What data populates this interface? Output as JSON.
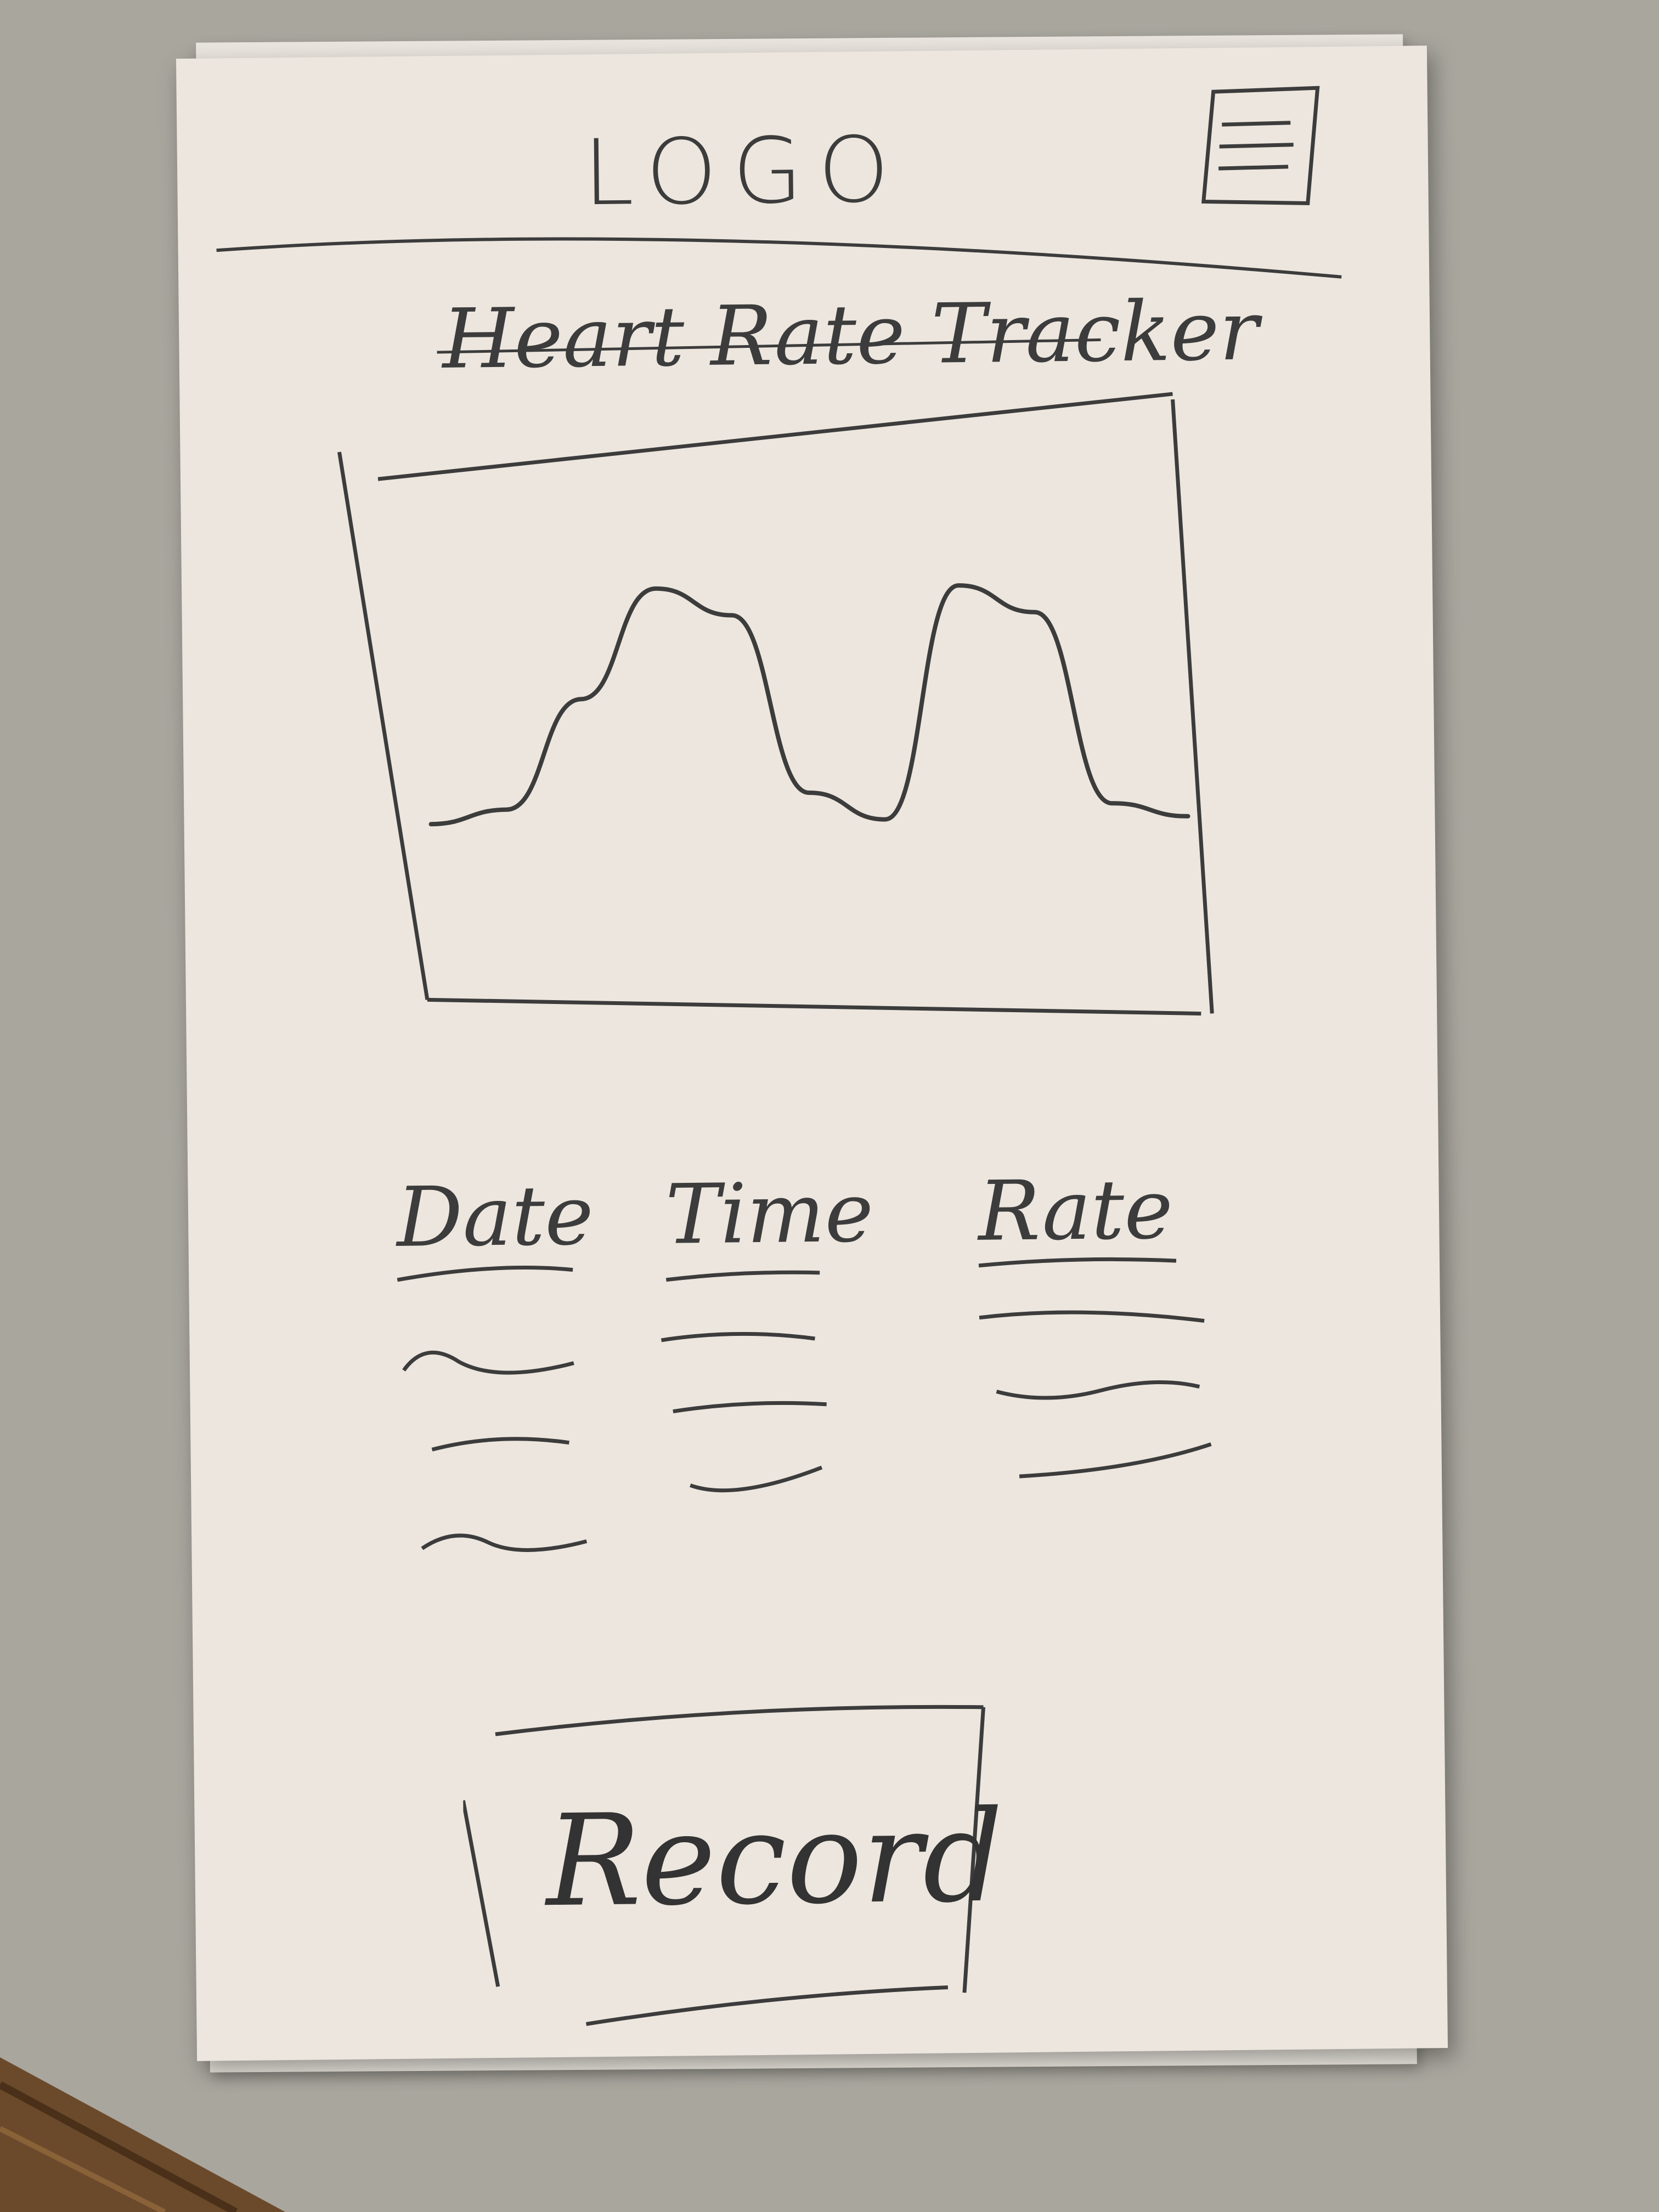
{
  "header": {
    "logo_text": "LOGO",
    "menu_icon": "hamburger-menu-icon"
  },
  "page": {
    "title": "Heart Rate Tracker"
  },
  "chart_data": {
    "type": "line",
    "title": "",
    "xlabel": "",
    "ylabel": "",
    "series": [
      {
        "values": [
          0.1,
          0.15,
          0.55,
          0.95,
          0.85,
          0.2,
          0.1,
          0.95,
          0.85,
          0.15,
          0.1
        ]
      }
    ]
  },
  "table": {
    "columns": [
      "Date",
      "Time",
      "Rate"
    ],
    "row_count_placeholders": 3
  },
  "actions": {
    "record_label": "Record"
  },
  "colors": {
    "paper": "#ece6de",
    "pencil": "#3c3c3c",
    "background": "#a9a69e"
  }
}
